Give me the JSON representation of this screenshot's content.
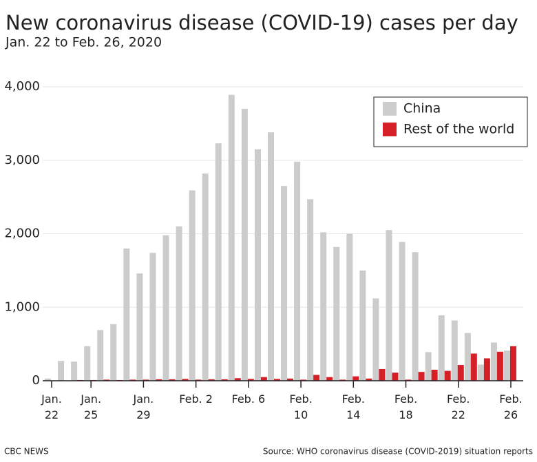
{
  "chart_data": {
    "type": "bar",
    "title": "New coronavirus disease (COVID-19) cases per day",
    "subtitle": "Jan. 22 to Feb. 26, 2020",
    "footer_left": "CBC NEWS",
    "source": "Source: WHO coronavirus disease (COVID-2019) situation reports",
    "categories": [
      "Jan. 22",
      null,
      null,
      "Jan. 25",
      null,
      null,
      null,
      "Jan. 29",
      null,
      null,
      null,
      "Feb. 2",
      null,
      null,
      null,
      "Feb. 6",
      null,
      null,
      null,
      "Feb. 10",
      null,
      null,
      null,
      "Feb. 14",
      null,
      null,
      null,
      "Feb. 18",
      null,
      null,
      null,
      "Feb. 22",
      null,
      null,
      null,
      "Feb. 26"
    ],
    "series": [
      {
        "name": "China",
        "color": "#cccccc",
        "values": [
          30,
          270,
          260,
          470,
          690,
          770,
          1800,
          1460,
          1740,
          1980,
          2100,
          2590,
          2820,
          3230,
          3890,
          3700,
          3150,
          3380,
          2650,
          2980,
          2470,
          2020,
          1820,
          2000,
          1500,
          1120,
          2050,
          1890,
          1750,
          390,
          890,
          820,
          650,
          220,
          520,
          410
        ]
      },
      {
        "name": "Rest of the world",
        "color": "#d62027",
        "values": [
          0,
          5,
          10,
          10,
          15,
          10,
          15,
          15,
          20,
          20,
          25,
          15,
          20,
          20,
          35,
          25,
          50,
          25,
          30,
          15,
          80,
          50,
          15,
          60,
          30,
          160,
          110,
          15,
          120,
          150,
          135,
          215,
          370,
          305,
          395,
          470
        ]
      }
    ],
    "ylim": [
      0,
      4000
    ],
    "yticks": [
      0,
      {
        "value": 1000,
        "label": "1,000"
      },
      {
        "value": 2000,
        "label": "2,000"
      },
      {
        "value": 3000,
        "label": "3,000"
      },
      {
        "value": 4000,
        "label": "4,000"
      }
    ],
    "grid": true,
    "legend": "upper right"
  }
}
